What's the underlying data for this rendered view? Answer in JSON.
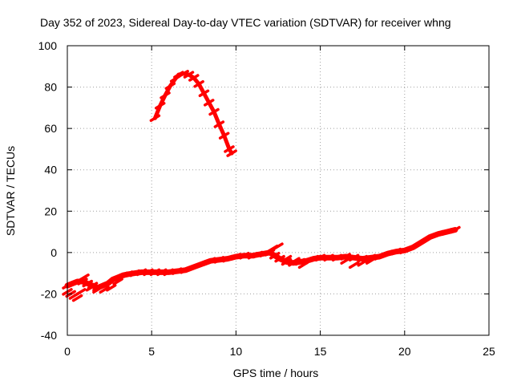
{
  "chart_data": {
    "type": "scatter",
    "title": "Day 352 of 2023, Sidereal Day-to-day VTEC variation (SDTVAR) for receiver whng",
    "xlabel": "GPS time / hours",
    "ylabel": "SDTVAR / TECUs",
    "xlim": [
      0,
      25
    ],
    "ylim": [
      -40,
      100
    ],
    "xticks": [
      0,
      5,
      10,
      15,
      20,
      25
    ],
    "yticks": [
      -40,
      -20,
      0,
      20,
      40,
      60,
      80,
      100
    ],
    "xtick_labels": [
      "0",
      "5",
      "10",
      "15",
      "20",
      "25"
    ],
    "ytick_labels": [
      "-40",
      "-20",
      "0",
      "20",
      "40",
      "60",
      "80",
      "100"
    ],
    "grid": true,
    "series": [
      {
        "name": "arc-high",
        "color": "#ff0000",
        "x": [
          5.2,
          5.5,
          5.8,
          6.1,
          6.4,
          6.6,
          6.9,
          7.2,
          7.5,
          7.8,
          8.1,
          8.4,
          8.7,
          9.0,
          9.3,
          9.6,
          9.75
        ],
        "y": [
          65,
          71,
          76,
          80.5,
          84,
          86,
          86.5,
          86,
          84.5,
          81.5,
          77,
          72.5,
          68,
          62,
          56.5,
          50,
          48
        ]
      },
      {
        "name": "main-band",
        "color": "#ff0000",
        "x": [
          0.0,
          0.3,
          0.6,
          0.9,
          1.2,
          1.5,
          1.8,
          2.1,
          2.4,
          2.7,
          3.0,
          3.3,
          3.6,
          4.0,
          4.4,
          4.8,
          5.2,
          5.6,
          6.0,
          6.5,
          7.0,
          7.5,
          8.0,
          8.5,
          9.0,
          9.5,
          10.0,
          10.5,
          11.0,
          11.3,
          11.7,
          12.0,
          12.3,
          12.6,
          13.0,
          13.4,
          13.8,
          14.2,
          14.6,
          15.0,
          15.5,
          16.0,
          16.5,
          17.0,
          17.5,
          18.0,
          18.5,
          19.0,
          19.5,
          20.0,
          20.5,
          21.0,
          21.5,
          22.0,
          22.5,
          23.0
        ],
        "y": [
          -16,
          -15,
          -14,
          -14,
          -15,
          -16,
          -17,
          -16,
          -15,
          -13,
          -12,
          -11,
          -10.5,
          -10,
          -9.5,
          -9.5,
          -9.5,
          -9.5,
          -9.5,
          -9,
          -8.5,
          -7,
          -5.5,
          -4,
          -3.5,
          -3,
          -2,
          -1.5,
          -1.5,
          -1,
          -0.5,
          0,
          -1.5,
          -3,
          -4.5,
          -5,
          -4.5,
          -4,
          -3,
          -2.5,
          -2.5,
          -2.5,
          -2,
          -2.5,
          -3,
          -2.5,
          -2,
          -0.5,
          0.5,
          1,
          2.5,
          5,
          7.5,
          9,
          10,
          11
        ]
      },
      {
        "name": "offset-traces",
        "color": "#ff0000",
        "x": [
          0.0,
          0.2,
          0.4,
          0.6,
          0.8,
          1.0,
          1.4,
          1.8,
          2.2,
          2.6,
          3.0,
          3.4,
          12.2,
          12.5,
          13.0,
          13.5,
          14.0,
          16.5,
          17.0,
          17.5,
          18.0
        ],
        "y": [
          -19,
          -20,
          -21,
          -22,
          -19,
          -12,
          -17,
          -18,
          -18,
          -17,
          -14,
          -11,
          2,
          3,
          -3,
          -4,
          -6,
          -4,
          -6,
          -5,
          -4
        ]
      }
    ]
  }
}
